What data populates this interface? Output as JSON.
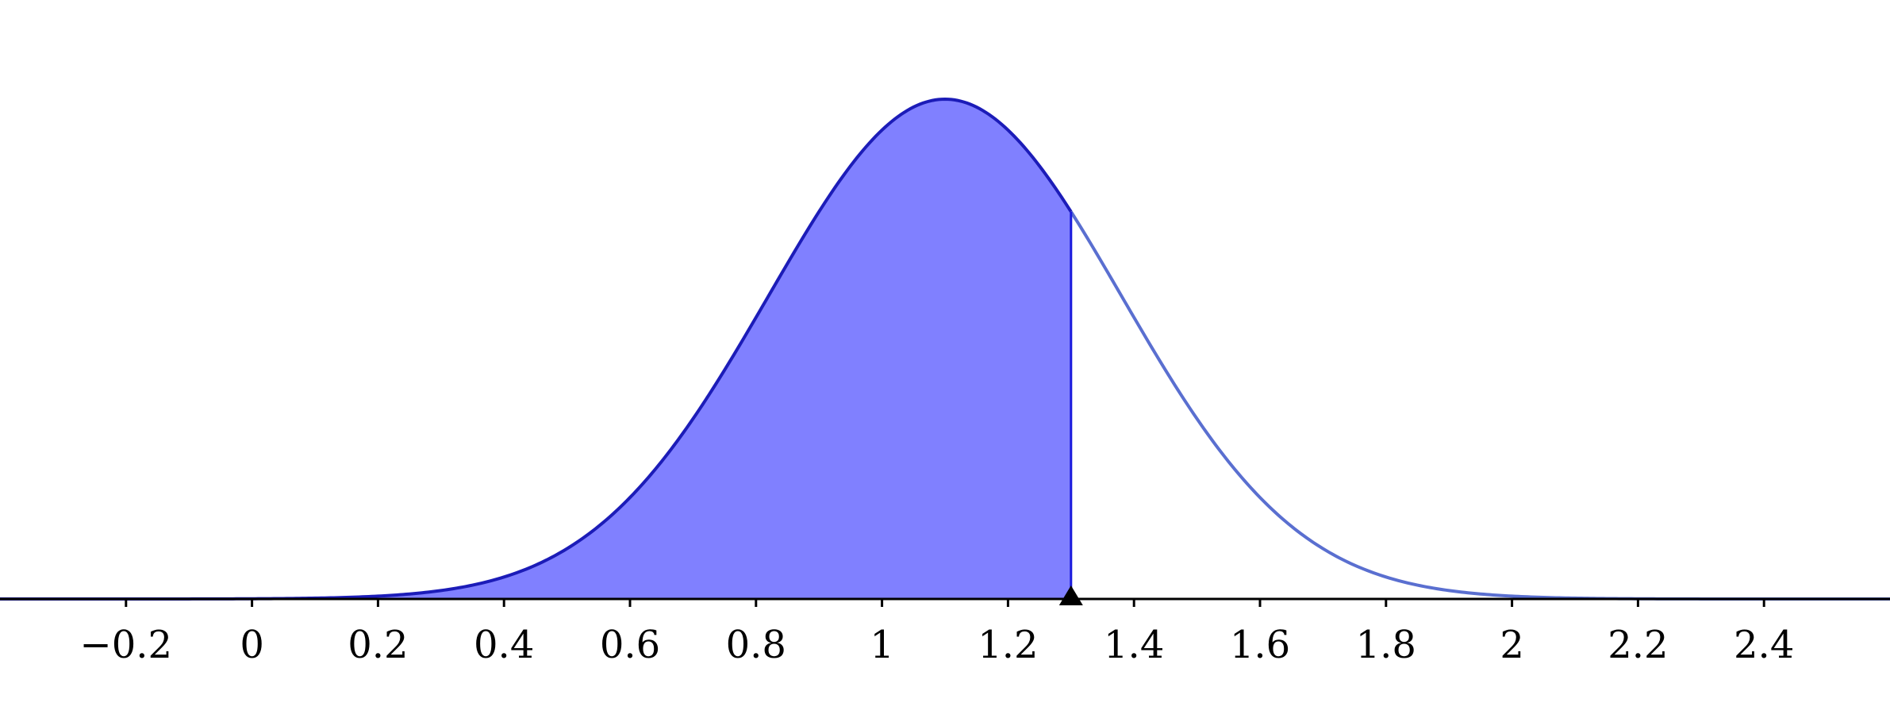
{
  "chart_data": {
    "type": "area",
    "title": "",
    "xlabel": "",
    "ylabel": "",
    "distribution": "normal",
    "mean": 1.1,
    "sd": 0.28,
    "shaded_region": {
      "from": -0.4,
      "to": 1.3
    },
    "marker_x": 1.3,
    "xlim": [
      -0.4,
      2.6
    ],
    "x_ticks": [
      -0.2,
      0,
      0.2,
      0.4,
      0.6,
      0.8,
      1,
      1.2,
      1.4,
      1.6,
      1.8,
      2,
      2.2,
      2.4
    ],
    "x_tick_labels": [
      "−0.2",
      "0",
      "0.2",
      "0.4",
      "0.6",
      "0.8",
      "1",
      "1.2",
      "1.4",
      "1.6",
      "1.8",
      "2",
      "2.2",
      "2.4"
    ],
    "grid": false,
    "colors": {
      "shade_fill": "#8080ff",
      "shaded_curve": "#1c1cb8",
      "unshaded_curve": "#5a6fd0",
      "boundary_line": "#1a1add",
      "axis": "#000000",
      "marker": "#000000"
    }
  }
}
